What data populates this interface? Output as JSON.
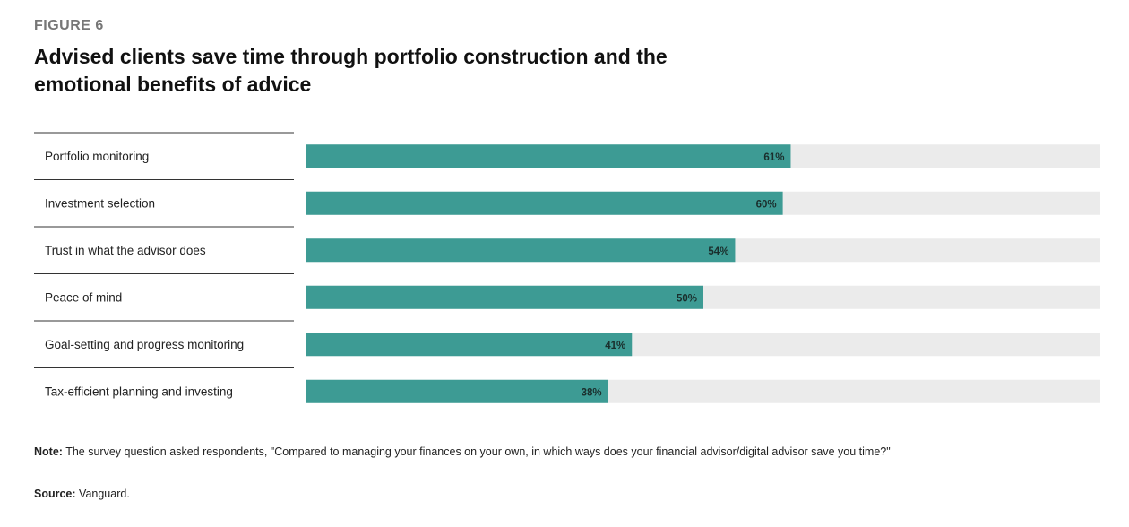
{
  "figure_label": "FIGURE 6",
  "title": "Advised clients save time through portfolio construction and the emotional benefits of advice",
  "note_label": "Note:",
  "note_text": "The survey question asked respondents, \"Compared to managing your finances on your own, in which ways does your financial advisor/digital advisor save you time?\"",
  "source_label": "Source:",
  "source_text": "Vanguard.",
  "colors": {
    "bar": "#3d9b94",
    "track": "#ebebeb",
    "rule": "#333333"
  },
  "chart_data": {
    "type": "bar",
    "orientation": "horizontal",
    "categories": [
      "Portfolio monitoring",
      "Investment selection",
      "Trust in what the advisor does",
      "Peace of mind",
      "Goal-setting and progress monitoring",
      "Tax-efficient planning and investing"
    ],
    "values": [
      61,
      60,
      54,
      50,
      41,
      38
    ],
    "value_labels": [
      "61%",
      "60%",
      "54%",
      "50%",
      "41%",
      "38%"
    ],
    "xlim": [
      0,
      100
    ]
  }
}
